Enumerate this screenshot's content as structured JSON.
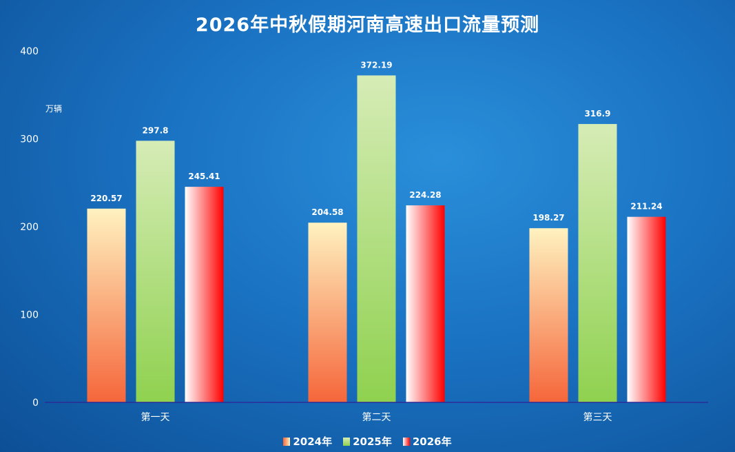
{
  "chart_data": {
    "type": "bar",
    "title": "2026年中秋假期河南高速出口流量预测",
    "ylabel": "万辆",
    "xlabel": "",
    "categories": [
      "第一天",
      "第二天",
      "第三天"
    ],
    "ylim": [
      0,
      400
    ],
    "yticks": [
      0,
      100,
      200,
      300,
      400
    ],
    "series": [
      {
        "name": "2024年",
        "values": [
          220.57,
          204.58,
          198.27
        ],
        "labels": [
          "220.57",
          "204.58",
          "198.27"
        ],
        "color_top": "#fff2c0",
        "color_bottom": "#f5663a"
      },
      {
        "name": "2025年",
        "values": [
          297.8,
          372.19,
          316.9
        ],
        "labels": [
          "297.8",
          "372.19",
          "316.9"
        ],
        "color_top": "#d6ecb6",
        "color_bottom": "#8fd14f"
      },
      {
        "name": "2026年",
        "values": [
          245.41,
          224.28,
          211.24
        ],
        "labels": [
          "245.41",
          "224.28",
          "211.24"
        ],
        "color_left": "#ffffff",
        "color_right": "#ff0000"
      }
    ],
    "grid": false,
    "legend_position": "bottom-center",
    "axis_color": "#2b2b9a",
    "text_color": "#ffffff"
  }
}
